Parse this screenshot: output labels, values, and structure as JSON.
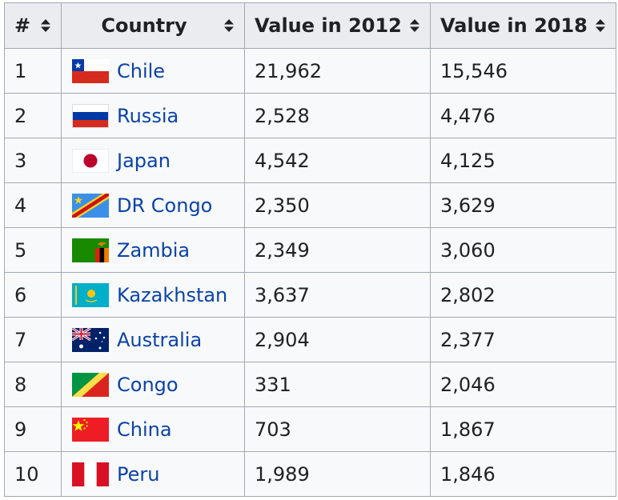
{
  "table": {
    "header": [
      "#",
      "Country",
      "Value in 2012",
      "Value in 2018"
    ],
    "rows": [
      [
        "1",
        "Chile",
        "21,962",
        "15,546"
      ],
      [
        "2",
        "Russia",
        "2,528",
        "4,476"
      ],
      [
        "3",
        "Japan",
        "4,542",
        "4,125"
      ],
      [
        "4",
        "DR Congo",
        "2,350",
        "3,629"
      ],
      [
        "5",
        "Zambia",
        "2,349",
        "3,060"
      ],
      [
        "6",
        "Kazakhstan",
        "3,637",
        "2,802"
      ],
      [
        "7",
        "Australia",
        "2,904",
        "2,377"
      ],
      [
        "8",
        "Congo",
        "331",
        "2,046"
      ],
      [
        "9",
        "China",
        "703",
        "1,867"
      ],
      [
        "10",
        "Peru",
        "1,989",
        "1,846"
      ]
    ]
  }
}
